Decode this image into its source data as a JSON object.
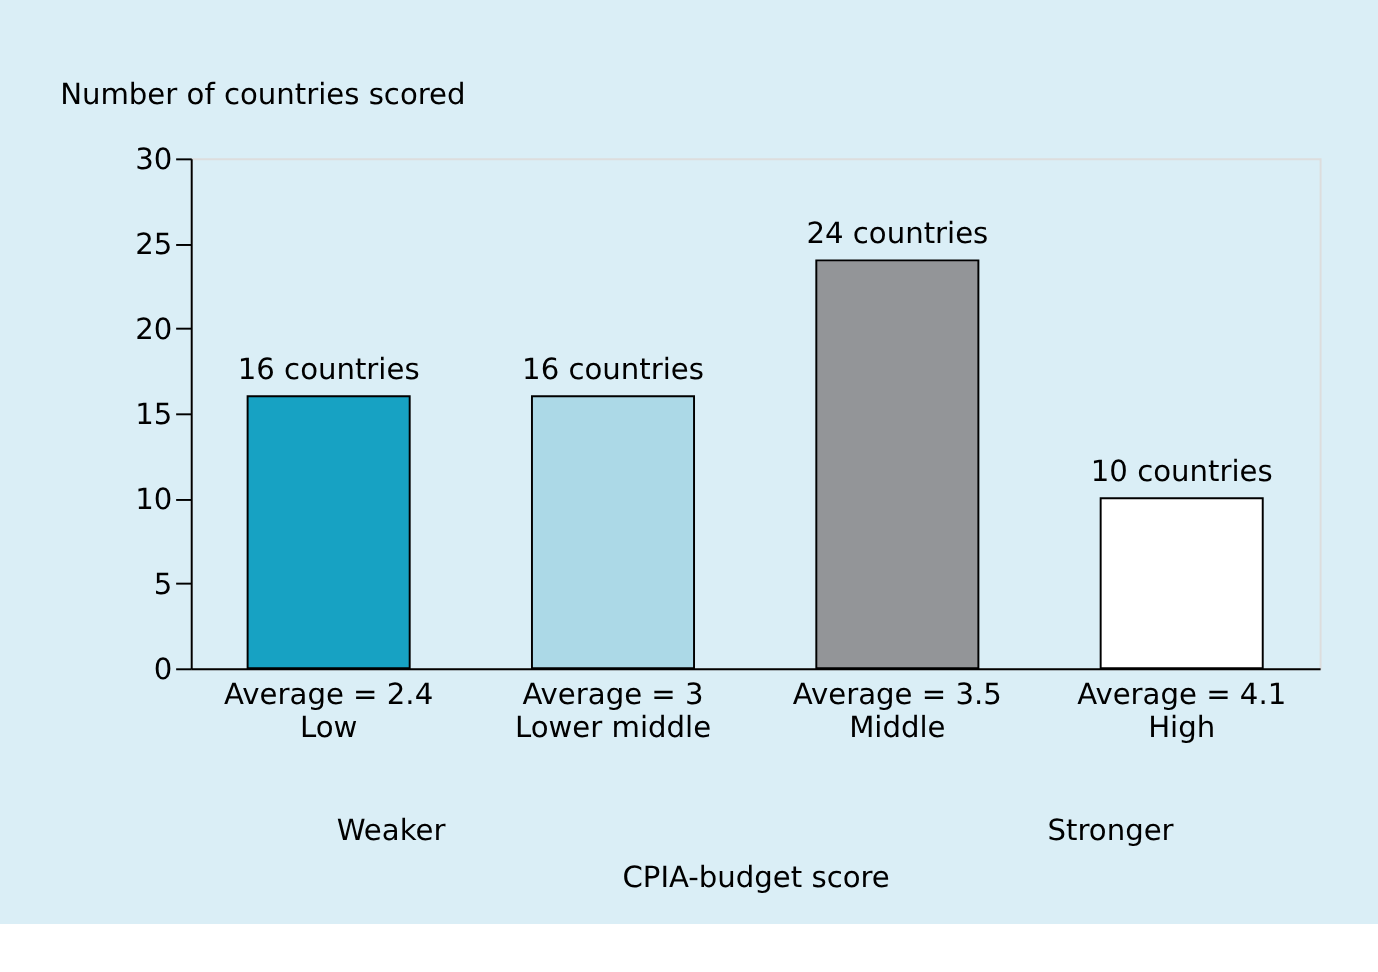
{
  "chart_data": {
    "type": "bar",
    "title": "Number of countries scored",
    "xlabel": "CPIA-budget score",
    "categories": [
      "Average = 2.4\nLow",
      "Average = 3\nLower middle",
      "Average = 3.5\nMiddle",
      "Average = 4.1\nHigh"
    ],
    "values": [
      16,
      16,
      24,
      10
    ],
    "colors": [
      "#17a2c3",
      "#acd9e7",
      "#939598",
      "#ffffff"
    ],
    "value_labels": [
      "16 countries",
      "16 countries",
      "24 countries",
      "10 countries"
    ],
    "ylim": [
      0,
      30
    ],
    "yticks": [
      0,
      5,
      10,
      15,
      20,
      25,
      30
    ],
    "grid": false,
    "annotations": [
      "Weaker",
      "Stronger"
    ]
  }
}
